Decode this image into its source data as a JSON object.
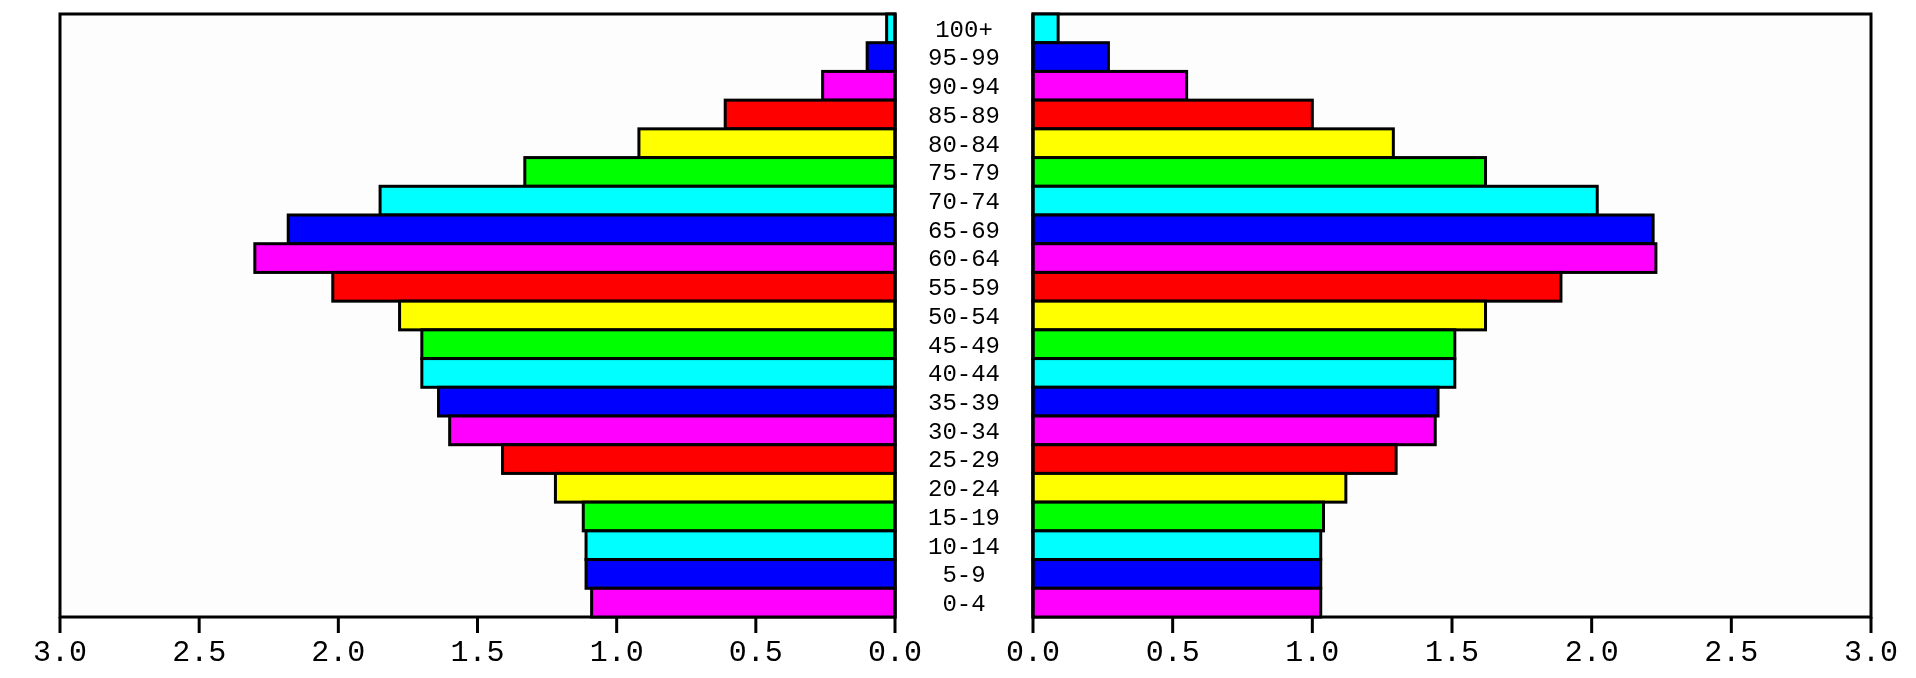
{
  "chart_data": [
    {
      "type": "bar",
      "orientation": "horizontal",
      "categories": [
        "100+",
        "95-99",
        "90-94",
        "85-89",
        "80-84",
        "75-79",
        "70-74",
        "65-69",
        "60-64",
        "55-59",
        "50-54",
        "45-49",
        "40-44",
        "35-39",
        "30-34",
        "25-29",
        "20-24",
        "15-19",
        "10-14",
        "5-9",
        "0-4"
      ],
      "values": [
        0.03,
        0.1,
        0.26,
        0.61,
        0.92,
        1.33,
        1.85,
        2.18,
        2.3,
        2.02,
        1.78,
        1.7,
        1.7,
        1.64,
        1.6,
        1.41,
        1.22,
        1.12,
        1.11,
        1.11,
        1.09
      ],
      "colors": [
        "#00ffff",
        "#0000ff",
        "#ff00ff",
        "#ff0000",
        "#ffff00",
        "#00ff00",
        "#00ffff",
        "#0000ff",
        "#ff00ff",
        "#ff0000",
        "#ffff00",
        "#00ff00",
        "#00ffff",
        "#0000ff",
        "#ff00ff",
        "#ff0000",
        "#ffff00",
        "#00ff00",
        "#00ffff",
        "#0000ff",
        "#ff00ff"
      ],
      "xlim": [
        3.0,
        0.0
      ],
      "xticks": [
        {
          "value": 3,
          "label": "3.0"
        },
        {
          "value": 2.5,
          "label": "2.5"
        },
        {
          "value": 2,
          "label": "2.0"
        },
        {
          "value": 1.5,
          "label": "1.5"
        },
        {
          "value": 1,
          "label": "1.0"
        },
        {
          "value": 0.5,
          "label": "0.5"
        },
        {
          "value": 0,
          "label": "0.0"
        }
      ],
      "grid": false
    },
    {
      "type": "bar",
      "orientation": "horizontal",
      "categories": [
        null,
        null,
        null,
        null,
        null,
        null,
        null,
        null,
        null,
        null,
        null,
        null,
        null,
        null,
        null,
        null,
        null,
        null,
        null,
        null,
        null
      ],
      "values": [
        0.09,
        0.27,
        0.55,
        1.0,
        1.29,
        1.62,
        2.02,
        2.22,
        2.23,
        1.89,
        1.62,
        1.51,
        1.51,
        1.45,
        1.44,
        1.3,
        1.12,
        1.04,
        1.03,
        1.03,
        1.03
      ],
      "colors": [
        "#00ffff",
        "#0000ff",
        "#ff00ff",
        "#ff0000",
        "#ffff00",
        "#00ff00",
        "#00ffff",
        "#0000ff",
        "#ff00ff",
        "#ff0000",
        "#ffff00",
        "#00ff00",
        "#00ffff",
        "#0000ff",
        "#ff00ff",
        "#ff0000",
        "#ffff00",
        "#00ff00",
        "#00ffff",
        "#0000ff",
        "#ff00ff"
      ],
      "xlim": [
        0.0,
        3.0
      ],
      "xticks": [
        {
          "value": 0,
          "label": "0.0"
        },
        {
          "value": 0.5,
          "label": "0.5"
        },
        {
          "value": 1,
          "label": "1.0"
        },
        {
          "value": 1.5,
          "label": "1.5"
        },
        {
          "value": 2,
          "label": "2.0"
        },
        {
          "value": 2.5,
          "label": "2.5"
        },
        {
          "value": 3,
          "label": "3.0"
        }
      ],
      "grid": false
    }
  ]
}
